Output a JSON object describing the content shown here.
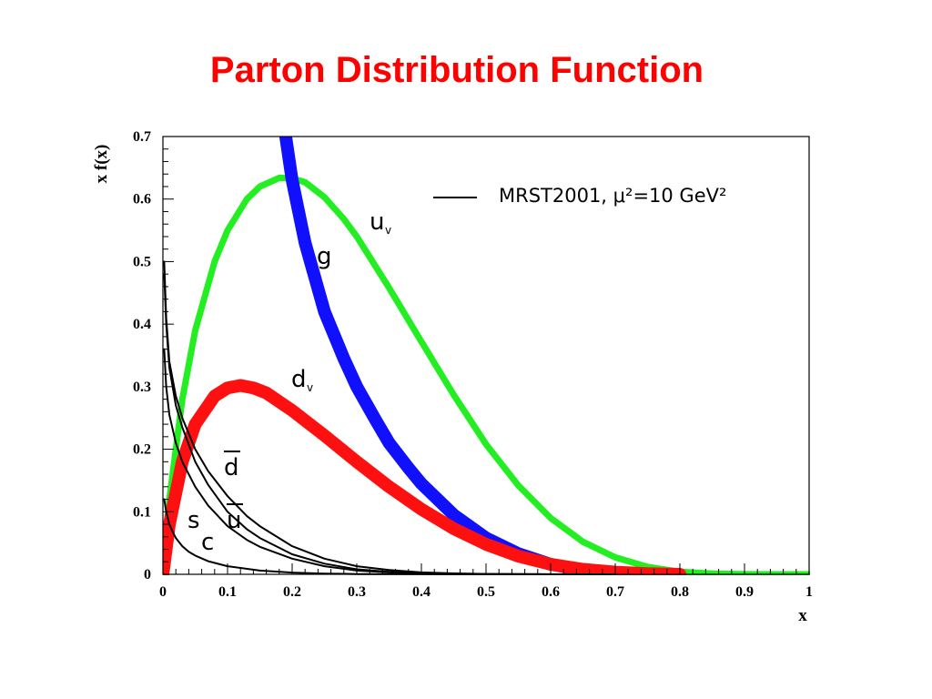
{
  "slide": {
    "title": "Parton Distribution Function"
  },
  "colors": {
    "title": "#ff0000",
    "u_v": "#22ee22",
    "g": "#1010ff",
    "d_v": "#ff1010",
    "sea": "#000000"
  },
  "chart_data": {
    "type": "line",
    "title": "Parton Distribution Function",
    "xlabel": "x",
    "ylabel": "x f(x)",
    "xlim": [
      0,
      1
    ],
    "ylim": [
      0,
      0.7
    ],
    "xticks": [
      "0",
      "0.1",
      "0.2",
      "0.3",
      "0.4",
      "0.5",
      "0.6",
      "0.7",
      "0.8",
      "0.9",
      "1"
    ],
    "yticks": [
      "0",
      "0.1",
      "0.2",
      "0.3",
      "0.4",
      "0.5",
      "0.6",
      "0.7"
    ],
    "legend": {
      "text": "MRST2001, μ²=10 GeV²",
      "position": "top-right"
    },
    "series": [
      {
        "name": "u_v",
        "label": "u",
        "sub": "v",
        "color": "#22ee22",
        "band": true,
        "x": [
          0,
          0.01,
          0.03,
          0.05,
          0.08,
          0.1,
          0.13,
          0.15,
          0.18,
          0.2,
          0.22,
          0.25,
          0.28,
          0.3,
          0.35,
          0.4,
          0.45,
          0.5,
          0.55,
          0.6,
          0.65,
          0.7,
          0.75,
          0.8,
          0.85,
          0.9,
          0.95,
          1.0
        ],
        "y": [
          0,
          0.12,
          0.28,
          0.39,
          0.5,
          0.55,
          0.6,
          0.62,
          0.634,
          0.633,
          0.627,
          0.603,
          0.568,
          0.54,
          0.458,
          0.372,
          0.287,
          0.208,
          0.142,
          0.09,
          0.052,
          0.027,
          0.012,
          0.004,
          0.0012,
          0.0002,
          0,
          0
        ]
      },
      {
        "name": "g",
        "label": "g",
        "sub": "",
        "color": "#1010ff",
        "band": true,
        "x": [
          0.19,
          0.2,
          0.22,
          0.25,
          0.28,
          0.3,
          0.33,
          0.35,
          0.38,
          0.4,
          0.45,
          0.5,
          0.55,
          0.6,
          0.65,
          0.7
        ],
        "y": [
          0.7,
          0.63,
          0.53,
          0.42,
          0.345,
          0.3,
          0.245,
          0.21,
          0.17,
          0.145,
          0.095,
          0.058,
          0.033,
          0.016,
          0.007,
          0.002
        ]
      },
      {
        "name": "d_v",
        "label": "d",
        "sub": "v",
        "color": "#ff1010",
        "band": true,
        "x": [
          0,
          0.01,
          0.03,
          0.05,
          0.08,
          0.1,
          0.12,
          0.14,
          0.16,
          0.2,
          0.25,
          0.3,
          0.35,
          0.4,
          0.45,
          0.5,
          0.55,
          0.6,
          0.65,
          0.7,
          0.75,
          0.8
        ],
        "y": [
          0,
          0.08,
          0.18,
          0.24,
          0.285,
          0.298,
          0.302,
          0.298,
          0.29,
          0.262,
          0.222,
          0.18,
          0.14,
          0.104,
          0.073,
          0.048,
          0.029,
          0.016,
          0.008,
          0.0035,
          0.0012,
          0
        ]
      },
      {
        "name": "d-bar",
        "label": "d",
        "sub": "",
        "overline": true,
        "color": "#000000",
        "band": false,
        "x": [
          0.002,
          0.005,
          0.01,
          0.02,
          0.03,
          0.05,
          0.07,
          0.1,
          0.13,
          0.15,
          0.2,
          0.25,
          0.3,
          0.35,
          0.4,
          0.45,
          0.5,
          0.6,
          0.7
        ],
        "y": [
          0.5,
          0.41,
          0.34,
          0.285,
          0.25,
          0.2,
          0.165,
          0.125,
          0.093,
          0.077,
          0.045,
          0.025,
          0.013,
          0.007,
          0.003,
          0.0015,
          0.0006,
          0.0001,
          0
        ]
      },
      {
        "name": "u-bar",
        "label": "u",
        "sub": "",
        "overline": true,
        "color": "#000000",
        "band": false,
        "x": [
          0.002,
          0.005,
          0.01,
          0.02,
          0.03,
          0.05,
          0.07,
          0.1,
          0.13,
          0.15,
          0.2,
          0.25,
          0.3,
          0.35,
          0.4,
          0.45,
          0.5,
          0.6,
          0.7
        ],
        "y": [
          0.48,
          0.4,
          0.33,
          0.27,
          0.235,
          0.18,
          0.143,
          0.1,
          0.072,
          0.058,
          0.032,
          0.017,
          0.008,
          0.004,
          0.0018,
          0.0008,
          0.0003,
          0,
          0
        ]
      },
      {
        "name": "s",
        "label": "s",
        "sub": "",
        "color": "#000000",
        "band": false,
        "x": [
          0.002,
          0.005,
          0.01,
          0.02,
          0.03,
          0.05,
          0.07,
          0.1,
          0.13,
          0.15,
          0.2,
          0.25,
          0.3,
          0.35,
          0.4,
          0.5,
          0.6
        ],
        "y": [
          0.36,
          0.3,
          0.255,
          0.21,
          0.18,
          0.14,
          0.11,
          0.077,
          0.055,
          0.044,
          0.025,
          0.013,
          0.006,
          0.003,
          0.0012,
          0.0002,
          0
        ]
      },
      {
        "name": "c",
        "label": "c",
        "sub": "",
        "color": "#000000",
        "band": false,
        "x": [
          0.002,
          0.005,
          0.01,
          0.015,
          0.02,
          0.03,
          0.04,
          0.05,
          0.07,
          0.1,
          0.15,
          0.2,
          0.25,
          0.3,
          0.4,
          0.5
        ],
        "y": [
          0.12,
          0.1,
          0.08,
          0.068,
          0.058,
          0.045,
          0.036,
          0.03,
          0.021,
          0.013,
          0.006,
          0.0028,
          0.0012,
          0.0005,
          0.0001,
          0
        ]
      }
    ]
  }
}
